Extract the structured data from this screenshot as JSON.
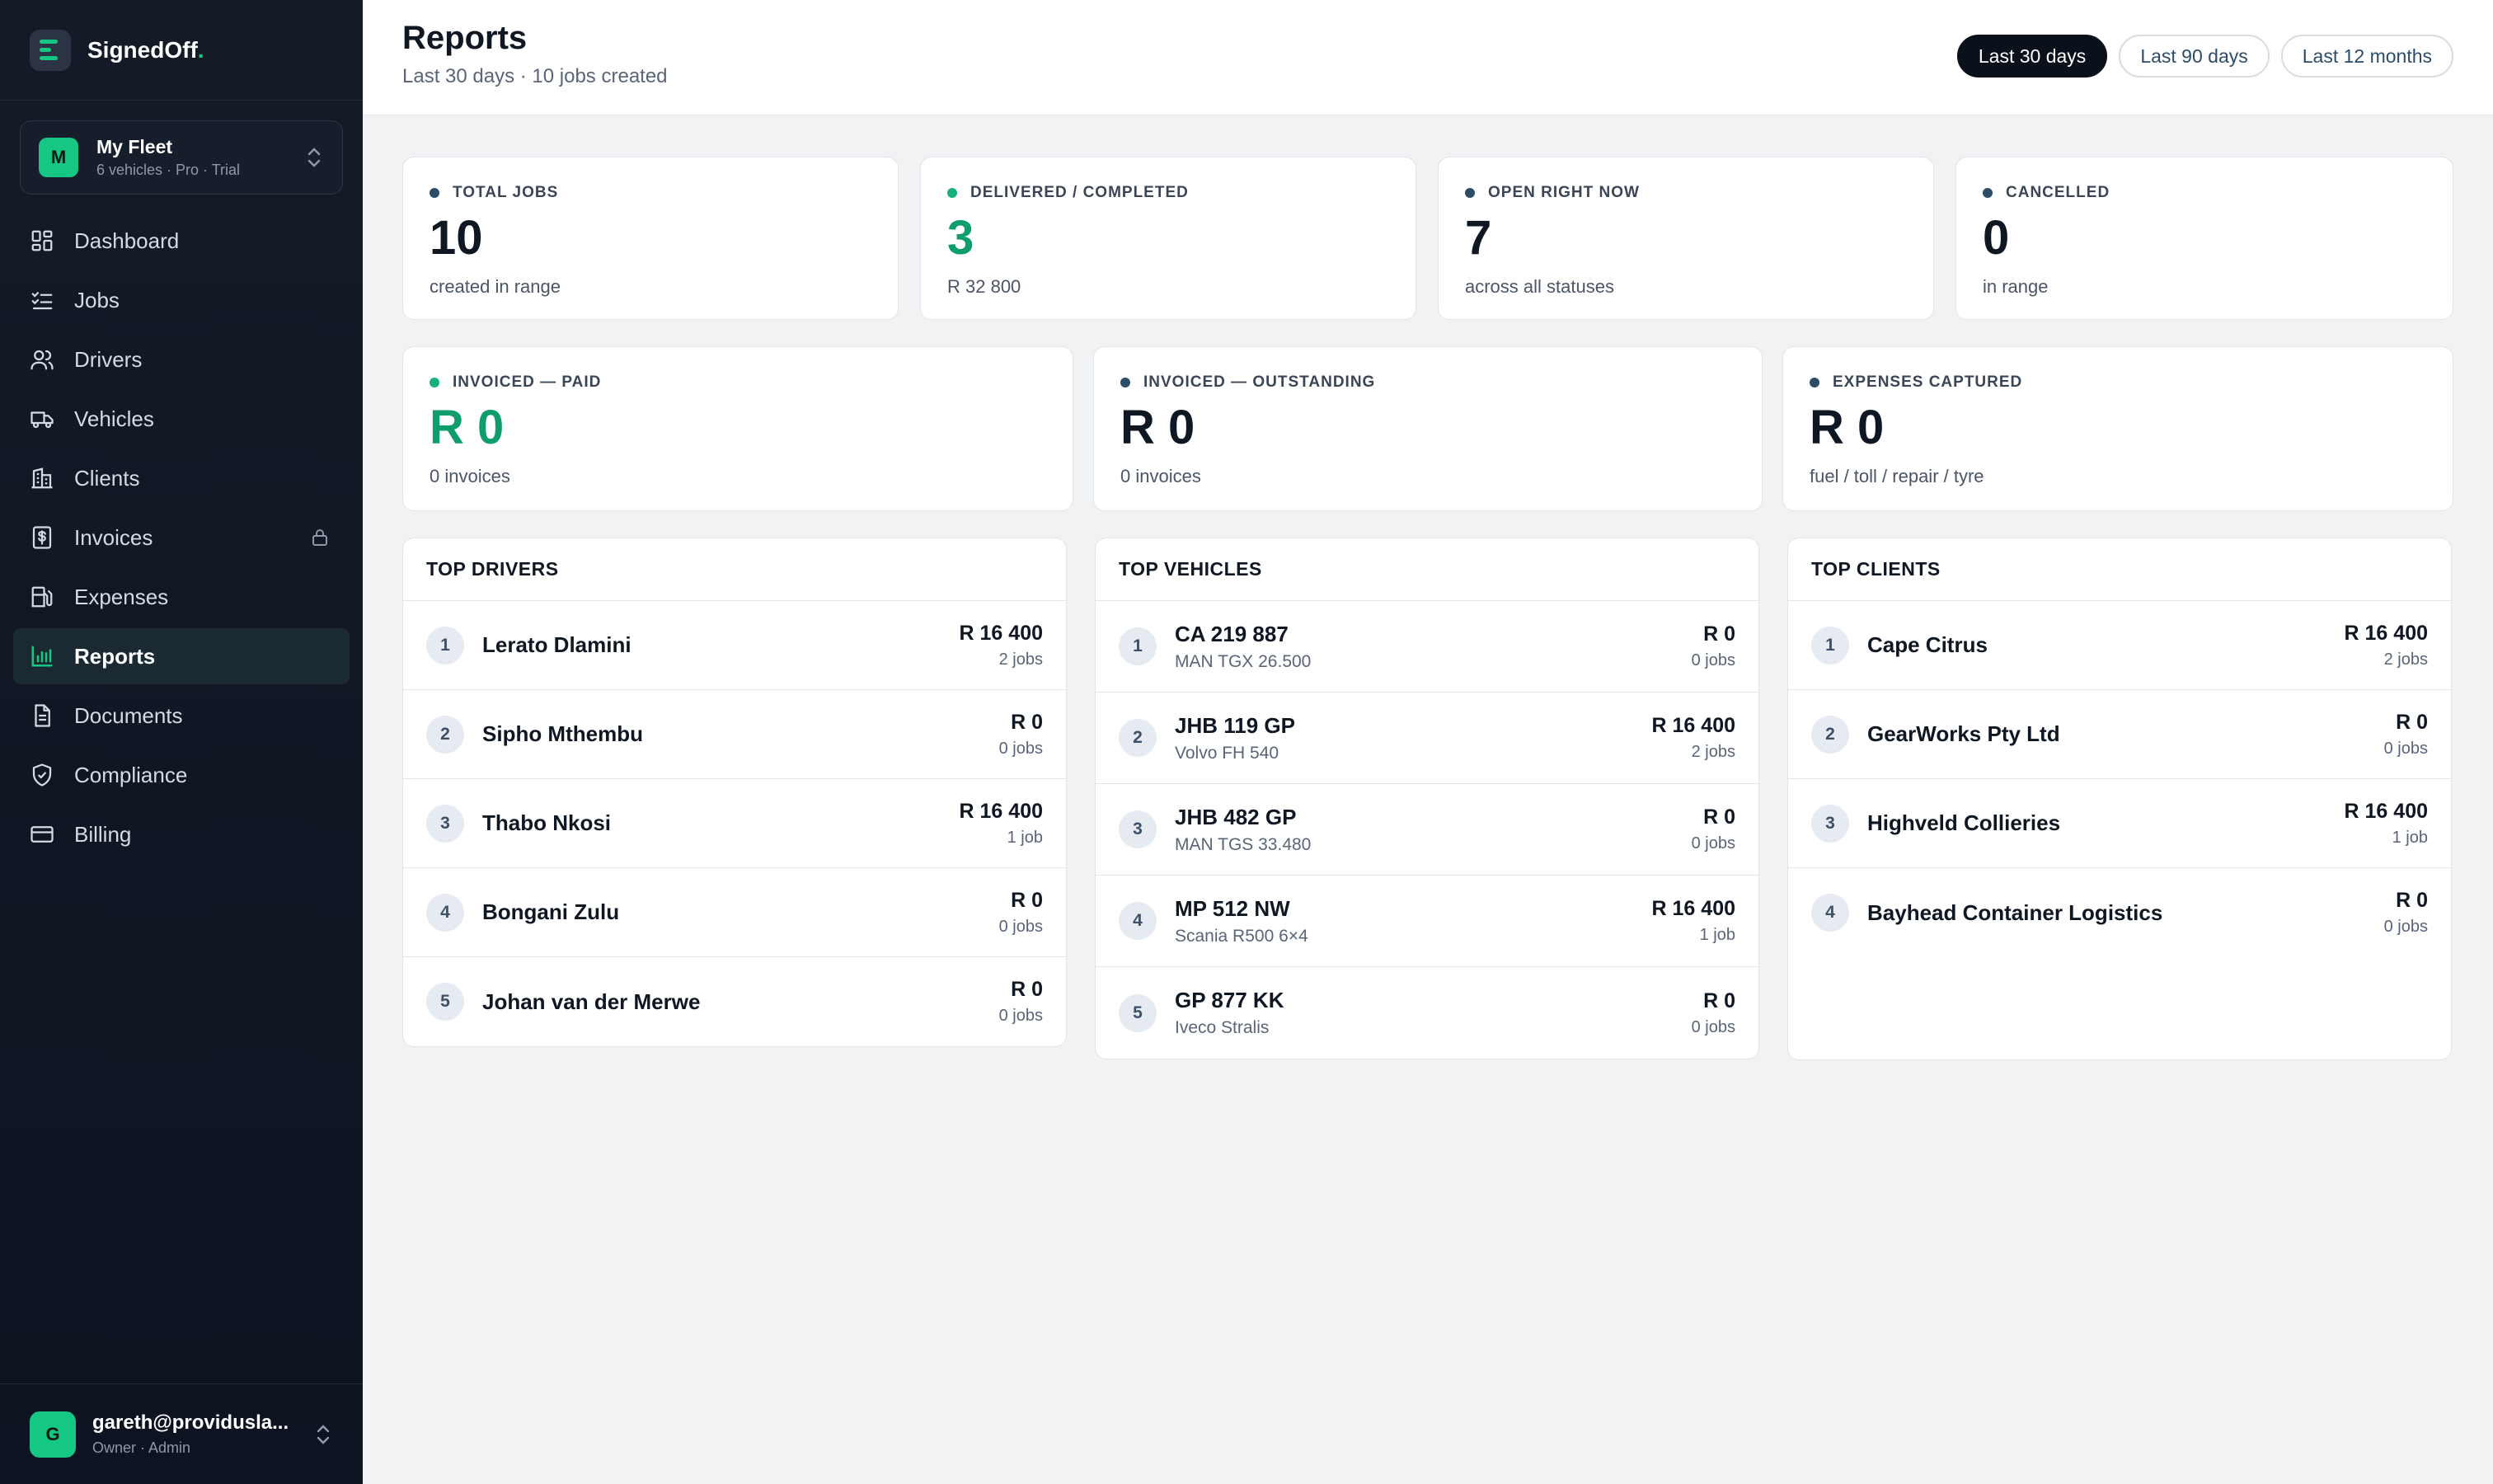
{
  "brand": {
    "name": "SignedOff",
    "suffix": "."
  },
  "fleet": {
    "avatar": "M",
    "name": "My Fleet",
    "sub": "6 vehicles · Pro · Trial"
  },
  "nav": [
    {
      "label": "Dashboard",
      "icon": "grid-icon"
    },
    {
      "label": "Jobs",
      "icon": "checklist-icon"
    },
    {
      "label": "Drivers",
      "icon": "users-icon"
    },
    {
      "label": "Vehicles",
      "icon": "truck-icon"
    },
    {
      "label": "Clients",
      "icon": "building-icon"
    },
    {
      "label": "Invoices",
      "icon": "invoice-icon",
      "locked": true
    },
    {
      "label": "Expenses",
      "icon": "fuel-icon"
    },
    {
      "label": "Reports",
      "icon": "bar-chart-icon",
      "active": true
    },
    {
      "label": "Documents",
      "icon": "document-icon"
    },
    {
      "label": "Compliance",
      "icon": "shield-icon"
    },
    {
      "label": "Billing",
      "icon": "card-icon"
    }
  ],
  "user": {
    "avatar": "G",
    "email": "gareth@providusla...",
    "role": "Owner · Admin"
  },
  "header": {
    "title": "Reports",
    "subtitle": "Last 30 days · 10 jobs created"
  },
  "ranges": [
    {
      "label": "Last 30 days",
      "active": true
    },
    {
      "label": "Last 90 days"
    },
    {
      "label": "Last 12 months"
    }
  ],
  "stats": {
    "total_jobs": {
      "label": "TOTAL JOBS",
      "value": "10",
      "sub": "created in range",
      "dot": "#2c4c68"
    },
    "delivered": {
      "label": "DELIVERED / COMPLETED",
      "value": "3",
      "sub": "R 32 800",
      "dot": "#16b07a"
    },
    "open": {
      "label": "OPEN RIGHT NOW",
      "value": "7",
      "sub": "across all statuses",
      "dot": "#2c4c68"
    },
    "cancelled": {
      "label": "CANCELLED",
      "value": "0",
      "sub": "in range",
      "dot": "#2c4c68"
    },
    "paid": {
      "label": "INVOICED — PAID",
      "value": "R 0",
      "sub": "0 invoices",
      "dot": "#16b07a"
    },
    "outstanding": {
      "label": "INVOICED — OUTSTANDING",
      "value": "R 0",
      "sub": "0 invoices",
      "dot": "#2c4c68"
    },
    "expenses": {
      "label": "EXPENSES CAPTURED",
      "value": "R 0",
      "sub": "fuel / toll / repair / tyre",
      "dot": "#2c4c68"
    }
  },
  "top_drivers": {
    "title": "TOP DRIVERS",
    "rows": [
      {
        "rank": "1",
        "name": "Lerato Dlamini",
        "amount": "R 16 400",
        "jobs": "2 jobs"
      },
      {
        "rank": "2",
        "name": "Sipho Mthembu",
        "amount": "R 0",
        "jobs": "0 jobs"
      },
      {
        "rank": "3",
        "name": "Thabo Nkosi",
        "amount": "R 16 400",
        "jobs": "1 job"
      },
      {
        "rank": "4",
        "name": "Bongani Zulu",
        "amount": "R 0",
        "jobs": "0 jobs"
      },
      {
        "rank": "5",
        "name": "Johan van der Merwe",
        "amount": "R 0",
        "jobs": "0 jobs"
      }
    ]
  },
  "top_vehicles": {
    "title": "TOP VEHICLES",
    "rows": [
      {
        "rank": "1",
        "name": "CA 219 887",
        "sub": "MAN TGX 26.500",
        "amount": "R 0",
        "jobs": "0 jobs"
      },
      {
        "rank": "2",
        "name": "JHB 119 GP",
        "sub": "Volvo FH 540",
        "amount": "R 16 400",
        "jobs": "2 jobs"
      },
      {
        "rank": "3",
        "name": "JHB 482 GP",
        "sub": "MAN TGS 33.480",
        "amount": "R 0",
        "jobs": "0 jobs"
      },
      {
        "rank": "4",
        "name": "MP 512 NW",
        "sub": "Scania R500 6×4",
        "amount": "R 16 400",
        "jobs": "1 job"
      },
      {
        "rank": "5",
        "name": "GP 877 KK",
        "sub": "Iveco Stralis",
        "amount": "R 0",
        "jobs": "0 jobs"
      }
    ]
  },
  "top_clients": {
    "title": "TOP CLIENTS",
    "rows": [
      {
        "rank": "1",
        "name": "Cape Citrus",
        "amount": "R 16 400",
        "jobs": "2 jobs"
      },
      {
        "rank": "2",
        "name": "GearWorks Pty Ltd",
        "amount": "R 0",
        "jobs": "0 jobs"
      },
      {
        "rank": "3",
        "name": "Highveld Collieries",
        "amount": "R 16 400",
        "jobs": "1 job"
      },
      {
        "rank": "4",
        "name": "Bayhead Container Logistics",
        "amount": "R 0",
        "jobs": "0 jobs"
      }
    ]
  }
}
